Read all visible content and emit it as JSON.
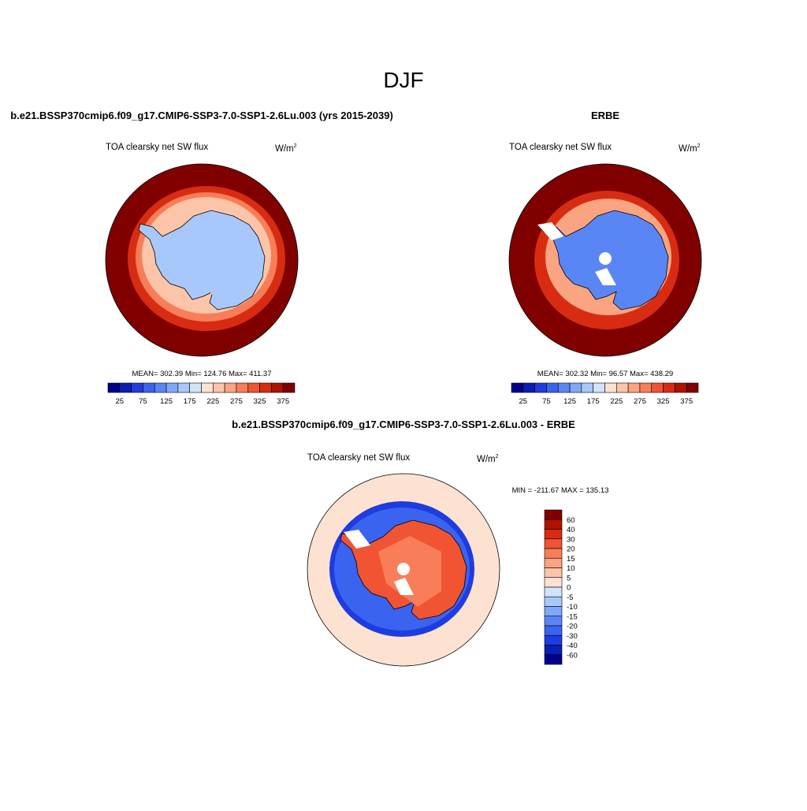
{
  "title": "DJF",
  "panels": [
    {
      "title": "b.e21.BSSP370cmip6.f09_g17.CMIP6-SSP3-7.0-SSP1-2.6Lu.003 (yrs 2015-2039)",
      "field": "TOA clearsky net SW flux",
      "units": "W/m",
      "units_exponent": 2,
      "stats": "MEAN= 302.39  Min= 124.76  Max= 411.37",
      "colorbar_labels": [
        25,
        75,
        125,
        175,
        225,
        275,
        325,
        375
      ]
    },
    {
      "title": "ERBE",
      "field": "TOA clearsky net SW flux",
      "units": "W/m",
      "units_exponent": 2,
      "stats": "MEAN= 302.32  Min=  96.57  Max= 438.29",
      "colorbar_labels": [
        25,
        75,
        125,
        175,
        225,
        275,
        325,
        375
      ]
    }
  ],
  "colorbar_colors": [
    "#00008c",
    "#0a1eb4",
    "#1e3ce0",
    "#3a64f0",
    "#5a86f5",
    "#80a8f8",
    "#a8c8fb",
    "#d2e4fc",
    "#fde2d2",
    "#fcc4a8",
    "#fba482",
    "#f87e5a",
    "#f05432",
    "#d82c12",
    "#b01200",
    "#800000"
  ],
  "difference": {
    "title": "b.e21.BSSP370cmip6.f09_g17.CMIP6-SSP3-7.0-SSP1-2.6Lu.003 - ERBE",
    "field": "TOA clearsky net SW flux",
    "units": "W/m",
    "units_exponent": 2,
    "stats": "MIN = -211.67 MAX = 135.13",
    "colorbar_labels": [
      60,
      40,
      30,
      20,
      15,
      10,
      5,
      0,
      -5,
      -10,
      -15,
      -20,
      -30,
      -40,
      -60
    ],
    "colorbar_colors": [
      "#800000",
      "#b01200",
      "#d82c12",
      "#f05432",
      "#f87e5a",
      "#fba482",
      "#fcc4a8",
      "#fde2d2",
      "#d2e4fc",
      "#a8c8fb",
      "#80a8f8",
      "#5a86f5",
      "#3a64f0",
      "#1e3ce0",
      "#0a1eb4",
      "#00008c"
    ]
  }
}
